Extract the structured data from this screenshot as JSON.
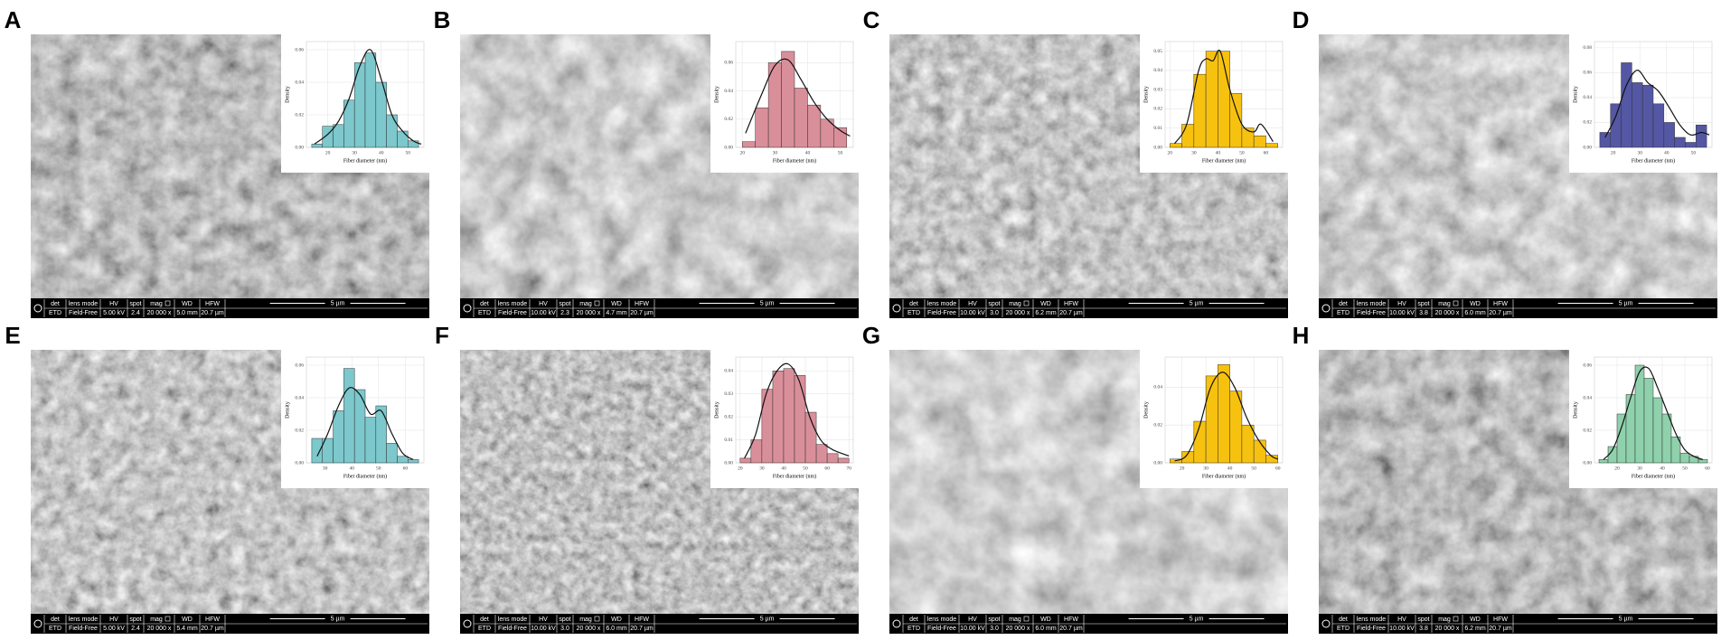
{
  "info_headers": [
    "det",
    "lens mode",
    "HV",
    "spot",
    "mag",
    "WD",
    "HFW"
  ],
  "panels": [
    {
      "label": "A",
      "info": [
        "ETD",
        "Field-Free",
        "5.00 kV",
        "2.4",
        "20 000 x",
        "5.0 mm",
        "20.7 µm"
      ],
      "scale": "5 µm"
    },
    {
      "label": "B",
      "info": [
        "ETD",
        "Field-Free",
        "10.00 kV",
        "2.3",
        "20 000 x",
        "4.7 mm",
        "20.7 µm"
      ],
      "scale": "5 µm"
    },
    {
      "label": "C",
      "info": [
        "ETD",
        "Field-Free",
        "10.00 kV",
        "3.0",
        "20 000 x",
        "6.2 mm",
        "20.7 µm"
      ],
      "scale": "5 µm"
    },
    {
      "label": "D",
      "info": [
        "ETD",
        "Field-Free",
        "10.00 kV",
        "3.8",
        "20 000 x",
        "6.0 mm",
        "20.7 µm"
      ],
      "scale": "5 µm"
    },
    {
      "label": "E",
      "info": [
        "ETD",
        "Field-Free",
        "5.00 kV",
        "2.4",
        "20 000 x",
        "5.4 mm",
        "20.7 µm"
      ],
      "scale": "5 µm"
    },
    {
      "label": "F",
      "info": [
        "ETD",
        "Field-Free",
        "10.00 kV",
        "3.0",
        "20 000 x",
        "6.0 mm",
        "20.7 µm"
      ],
      "scale": "5 µm"
    },
    {
      "label": "G",
      "info": [
        "ETD",
        "Field-Free",
        "10.00 kV",
        "3.0",
        "20 000 x",
        "6.0 mm",
        "20.7 µm"
      ],
      "scale": "5 µm"
    },
    {
      "label": "H",
      "info": [
        "ETD",
        "Field-Free",
        "10.00 kV",
        "3.8",
        "20 000 x",
        "6.2 mm",
        "20.7 µm"
      ],
      "scale": "5 µm"
    }
  ],
  "chart_data": [
    {
      "type": "histogram",
      "xlabel": "Fiber diameter (nm)",
      "ylabel": "Density",
      "color": "#7cc8cc",
      "bins": [
        14,
        18,
        22,
        26,
        30,
        34,
        38,
        42,
        46,
        50,
        54
      ],
      "values": [
        0.002,
        0.013,
        0.014,
        0.029,
        0.052,
        0.058,
        0.04,
        0.02,
        0.01,
        0.004
      ],
      "curve": {
        "x": [
          15,
          20,
          24,
          28,
          32,
          36,
          40,
          44,
          48,
          52,
          55
        ],
        "y": [
          0.002,
          0.008,
          0.016,
          0.03,
          0.05,
          0.06,
          0.042,
          0.02,
          0.01,
          0.004,
          0.002
        ]
      },
      "xlim": [
        12,
        56
      ],
      "xticks": [
        20,
        30,
        40,
        50
      ],
      "ylim": [
        0,
        0.065
      ],
      "yticks": [
        {
          "value": 0,
          "label": "0.00"
        },
        {
          "value": 0.02,
          "label": "0.02"
        },
        {
          "value": 0.04,
          "label": "0.04"
        },
        {
          "value": 0.06,
          "label": "0.06"
        }
      ]
    },
    {
      "type": "histogram",
      "xlabel": "Fiber diameter (nm)",
      "ylabel": "Density",
      "color": "#d98f9a",
      "bins": [
        20,
        24,
        28,
        32,
        36,
        40,
        44,
        48,
        52
      ],
      "values": [
        0.004,
        0.028,
        0.06,
        0.068,
        0.042,
        0.03,
        0.02,
        0.014
      ],
      "curve": {
        "x": [
          21,
          26,
          30,
          34,
          38,
          42,
          46,
          50,
          53
        ],
        "y": [
          0.01,
          0.038,
          0.058,
          0.062,
          0.048,
          0.032,
          0.02,
          0.012,
          0.008
        ]
      },
      "xlim": [
        18,
        54
      ],
      "xticks": [
        20,
        30,
        40,
        50
      ],
      "ylim": [
        0,
        0.075
      ],
      "yticks": [
        {
          "value": 0,
          "label": "0.00"
        },
        {
          "value": 0.02,
          "label": "0.02"
        },
        {
          "value": 0.04,
          "label": "0.04"
        },
        {
          "value": 0.06,
          "label": "0.06"
        }
      ]
    },
    {
      "type": "histogram",
      "xlabel": "Fiber diameter (nm)",
      "ylabel": "Density",
      "color": "#f7c10f",
      "bins": [
        20,
        25,
        30,
        35,
        40,
        45,
        50,
        55,
        60,
        65
      ],
      "values": [
        0.002,
        0.012,
        0.038,
        0.05,
        0.05,
        0.028,
        0.01,
        0.006,
        0.002
      ],
      "curve": {
        "x": [
          22,
          27,
          32,
          35,
          38,
          41,
          45,
          50,
          55,
          58,
          63
        ],
        "y": [
          0.002,
          0.012,
          0.04,
          0.046,
          0.045,
          0.05,
          0.03,
          0.012,
          0.008,
          0.012,
          0.003
        ]
      },
      "xlim": [
        18,
        67
      ],
      "xticks": [
        20,
        30,
        40,
        50,
        60
      ],
      "ylim": [
        0,
        0.055
      ],
      "yticks": [
        {
          "value": 0,
          "label": "0.00"
        },
        {
          "value": 0.01,
          "label": "0.01"
        },
        {
          "value": 0.02,
          "label": "0.02"
        },
        {
          "value": 0.03,
          "label": "0.03"
        },
        {
          "value": 0.04,
          "label": "0.04"
        },
        {
          "value": 0.05,
          "label": "0.05"
        }
      ]
    },
    {
      "type": "histogram",
      "xlabel": "Fiber diameter (nm)",
      "ylabel": "Density",
      "color": "#5457a3",
      "bins": [
        15,
        19,
        23,
        27,
        31,
        35,
        39,
        43,
        47,
        51,
        55
      ],
      "values": [
        0.012,
        0.035,
        0.068,
        0.052,
        0.05,
        0.035,
        0.02,
        0.008,
        0.004,
        0.018
      ],
      "curve": {
        "x": [
          17,
          21,
          25,
          29,
          33,
          37,
          41,
          45,
          49,
          53,
          56
        ],
        "y": [
          0.008,
          0.025,
          0.05,
          0.062,
          0.052,
          0.045,
          0.032,
          0.018,
          0.01,
          0.012,
          0.01
        ]
      },
      "xlim": [
        13,
        57
      ],
      "xticks": [
        20,
        30,
        40,
        50
      ],
      "ylim": [
        0,
        0.085
      ],
      "yticks": [
        {
          "value": 0,
          "label": "0.00"
        },
        {
          "value": 0.02,
          "label": "0.02"
        },
        {
          "value": 0.04,
          "label": "0.04"
        },
        {
          "value": 0.06,
          "label": "0.06"
        },
        {
          "value": 0.08,
          "label": "0.08"
        }
      ]
    },
    {
      "type": "histogram",
      "xlabel": "Fiber diameter (nm)",
      "ylabel": "Density",
      "color": "#7cc8cc",
      "bins": [
        25,
        29,
        33,
        37,
        41,
        45,
        49,
        53,
        57,
        61,
        65
      ],
      "values": [
        0.015,
        0.015,
        0.032,
        0.058,
        0.045,
        0.028,
        0.035,
        0.012,
        0.004,
        0.002
      ],
      "curve": {
        "x": [
          27,
          31,
          35,
          39,
          43,
          47,
          51,
          55,
          59,
          63
        ],
        "y": [
          0.004,
          0.018,
          0.035,
          0.046,
          0.042,
          0.03,
          0.032,
          0.018,
          0.006,
          0.002
        ]
      },
      "xlim": [
        23,
        67
      ],
      "xticks": [
        30,
        40,
        50,
        60
      ],
      "ylim": [
        0,
        0.065
      ],
      "yticks": [
        {
          "value": 0,
          "label": "0.00"
        },
        {
          "value": 0.02,
          "label": "0.02"
        },
        {
          "value": 0.04,
          "label": "0.04"
        },
        {
          "value": 0.06,
          "label": "0.06"
        }
      ]
    },
    {
      "type": "histogram",
      "xlabel": "Fiber diameter (nm)",
      "ylabel": "Density",
      "color": "#d98f9a",
      "bins": [
        20,
        25,
        30,
        35,
        40,
        45,
        50,
        55,
        60,
        65,
        70
      ],
      "values": [
        0.002,
        0.01,
        0.032,
        0.04,
        0.041,
        0.038,
        0.022,
        0.008,
        0.004,
        0.002
      ],
      "curve": {
        "x": [
          22,
          27,
          32,
          37,
          42,
          47,
          52,
          57,
          62,
          67,
          70
        ],
        "y": [
          0.002,
          0.012,
          0.03,
          0.04,
          0.043,
          0.036,
          0.02,
          0.01,
          0.006,
          0.004,
          0.003
        ]
      },
      "xlim": [
        18,
        72
      ],
      "xticks": [
        20,
        30,
        40,
        50,
        60,
        70
      ],
      "ylim": [
        0,
        0.046
      ],
      "yticks": [
        {
          "value": 0,
          "label": "0.00"
        },
        {
          "value": 0.01,
          "label": "0.01"
        },
        {
          "value": 0.02,
          "label": "0.02"
        },
        {
          "value": 0.03,
          "label": "0.03"
        },
        {
          "value": 0.04,
          "label": "0.04"
        }
      ]
    },
    {
      "type": "histogram",
      "xlabel": "Fiber diameter (nm)",
      "ylabel": "Density",
      "color": "#f7c10f",
      "bins": [
        15,
        20,
        25,
        30,
        35,
        40,
        45,
        50,
        55,
        60
      ],
      "values": [
        0.002,
        0.006,
        0.022,
        0.046,
        0.052,
        0.038,
        0.02,
        0.012,
        0.004
      ],
      "curve": {
        "x": [
          17,
          22,
          27,
          32,
          37,
          42,
          47,
          52,
          57,
          60
        ],
        "y": [
          0.001,
          0.004,
          0.018,
          0.04,
          0.048,
          0.04,
          0.024,
          0.012,
          0.004,
          0.002
        ]
      },
      "xlim": [
        13,
        62
      ],
      "xticks": [
        20,
        30,
        40,
        50,
        60
      ],
      "ylim": [
        0,
        0.056
      ],
      "yticks": [
        {
          "value": 0,
          "label": "0.00"
        },
        {
          "value": 0.02,
          "label": "0.02"
        },
        {
          "value": 0.04,
          "label": "0.04"
        }
      ]
    },
    {
      "type": "histogram",
      "xlabel": "Fiber diameter (nm)",
      "ylabel": "Density",
      "color": "#8fd1ac",
      "bins": [
        12,
        16,
        20,
        24,
        28,
        32,
        36,
        40,
        44,
        48,
        52,
        56,
        60
      ],
      "values": [
        0.002,
        0.01,
        0.03,
        0.042,
        0.06,
        0.052,
        0.04,
        0.03,
        0.016,
        0.006,
        0.004,
        0.002
      ],
      "curve": {
        "x": [
          14,
          18,
          22,
          26,
          30,
          34,
          38,
          42,
          46,
          50,
          54,
          58
        ],
        "y": [
          0.002,
          0.008,
          0.022,
          0.04,
          0.056,
          0.058,
          0.046,
          0.032,
          0.018,
          0.008,
          0.004,
          0.002
        ]
      },
      "xlim": [
        10,
        62
      ],
      "xticks": [
        20,
        30,
        40,
        50,
        60
      ],
      "ylim": [
        0,
        0.065
      ],
      "yticks": [
        {
          "value": 0,
          "label": "0.00"
        },
        {
          "value": 0.02,
          "label": "0.02"
        },
        {
          "value": 0.04,
          "label": "0.04"
        },
        {
          "value": 0.06,
          "label": "0.06"
        }
      ]
    }
  ]
}
